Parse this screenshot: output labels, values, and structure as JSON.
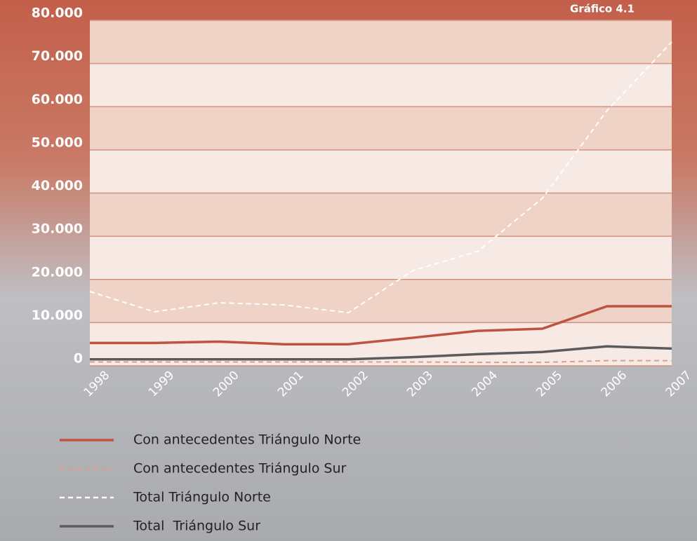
{
  "chart_data": {
    "type": "line",
    "title": "Gráfico 4.1",
    "categories": [
      "1998",
      "1999",
      "2000",
      "2001",
      "2002",
      "2003",
      "2004",
      "2005",
      "2006",
      "2007"
    ],
    "series": [
      {
        "name": "Con antecedentes Triángulo Norte",
        "color": "#c0533f",
        "dash": false,
        "values": [
          5300,
          5300,
          5600,
          5000,
          5000,
          6500,
          8100,
          8600,
          13800,
          13800
        ]
      },
      {
        "name": "Con antecedentes Triángulo Sur",
        "color": "#d9a08f",
        "dash": true,
        "values": [
          900,
          900,
          900,
          900,
          900,
          900,
          800,
          800,
          1200,
          1200
        ]
      },
      {
        "name": "Total Triángulo Norte",
        "color": "#ffffff",
        "dash": true,
        "values": [
          17200,
          12500,
          14600,
          14100,
          12300,
          22100,
          26500,
          38800,
          59100,
          75000
        ]
      },
      {
        "name": "Total  Triángulo Sur",
        "color": "#5b5b5e",
        "dash": false,
        "values": [
          1500,
          1500,
          1500,
          1500,
          1500,
          2000,
          2700,
          3200,
          4500,
          4000
        ]
      }
    ],
    "ylim": [
      0,
      80000
    ],
    "yticks": [
      0,
      {
        "value": 10000,
        "label": "10.000"
      },
      {
        "value": 20000,
        "label": "20.000"
      },
      {
        "value": 30000,
        "label": "30.000"
      },
      {
        "value": 40000,
        "label": "40.000"
      },
      {
        "value": 50000,
        "label": "50.000"
      },
      {
        "value": 60000,
        "label": "60.000"
      },
      {
        "value": 70000,
        "label": "70.000"
      },
      {
        "value": 80000,
        "label": "80.000"
      }
    ],
    "grid": true
  }
}
